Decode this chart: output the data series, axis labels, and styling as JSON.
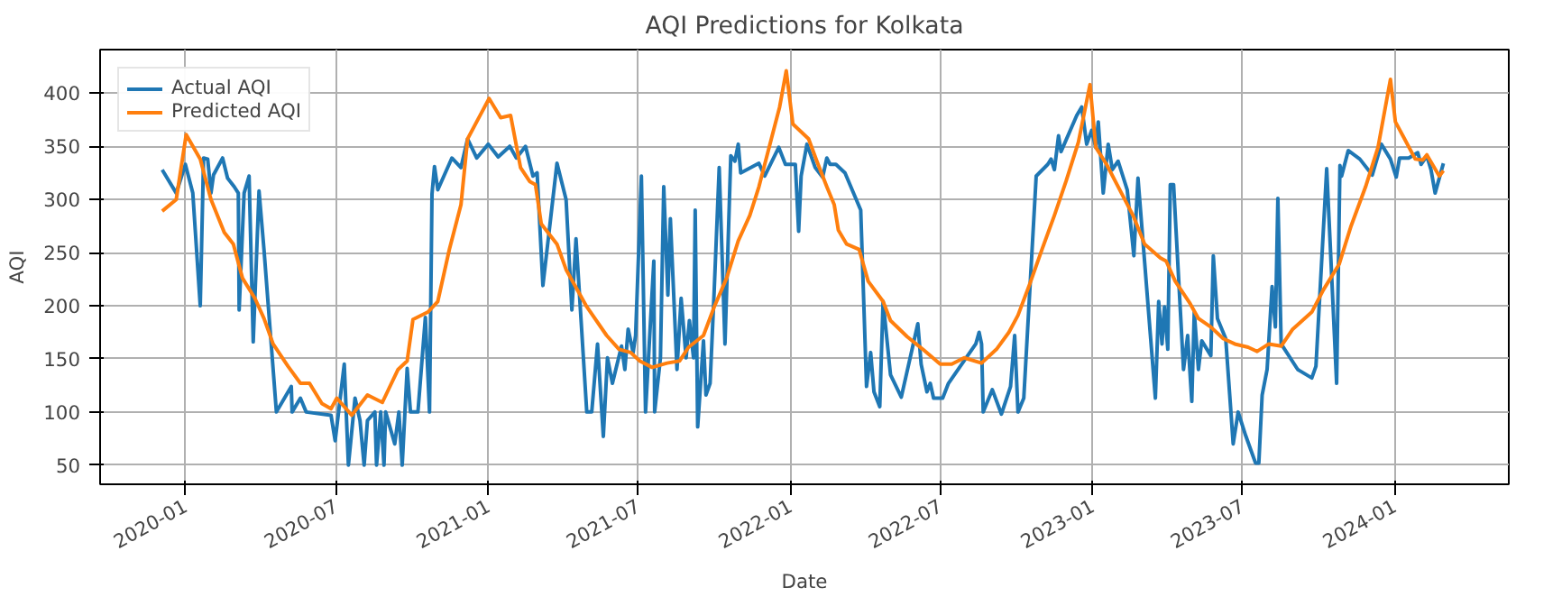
{
  "chart_data": {
    "type": "line",
    "title": "AQI Predictions for Kolkata",
    "xlabel": "Date",
    "ylabel": "AQI",
    "xlim": [
      "2019-09-20",
      "2024-05-18"
    ],
    "ylim": [
      32,
      441
    ],
    "xticks": [
      "2020-01",
      "2020-07",
      "2021-01",
      "2021-07",
      "2022-01",
      "2022-07",
      "2023-01",
      "2023-07",
      "2024-01"
    ],
    "yticks": [
      50,
      100,
      150,
      200,
      250,
      300,
      350,
      400
    ],
    "grid": true,
    "legend": "top left",
    "series": [
      {
        "name": "Actual AQI",
        "color": "#1f77b4",
        "x": [
          "2019-12-04",
          "2019-12-21",
          "2020-01-01",
          "2020-01-10",
          "2020-01-19",
          "2020-01-23",
          "2020-01-28",
          "2020-02-01",
          "2020-02-04",
          "2020-02-15",
          "2020-02-21",
          "2020-02-29",
          "2020-03-05",
          "2020-03-06",
          "2020-03-12",
          "2020-03-18",
          "2020-03-23",
          "2020-03-30",
          "2020-04-05",
          "2020-04-20",
          "2020-05-08",
          "2020-05-09",
          "2020-05-19",
          "2020-05-26",
          "2020-06-25",
          "2020-06-30",
          "2020-07-11",
          "2020-07-16",
          "2020-07-24",
          "2020-07-30",
          "2020-08-04",
          "2020-08-08",
          "2020-08-17",
          "2020-08-19",
          "2020-08-24",
          "2020-08-28",
          "2020-08-30",
          "2020-09-10",
          "2020-09-15",
          "2020-09-19",
          "2020-09-25",
          "2020-09-29",
          "2020-10-08",
          "2020-10-17",
          "2020-10-22",
          "2020-10-25",
          "2020-10-28",
          "2020-11-01",
          "2020-11-18",
          "2020-11-29",
          "2020-12-07",
          "2020-12-18",
          "2021-01-01",
          "2021-01-13",
          "2021-01-27",
          "2021-02-04",
          "2021-02-15",
          "2021-02-24",
          "2021-03-01",
          "2021-03-08",
          "2021-03-25",
          "2021-04-05",
          "2021-04-12",
          "2021-04-17",
          "2021-04-30",
          "2021-05-06",
          "2021-05-13",
          "2021-05-20",
          "2021-05-25",
          "2021-05-31",
          "2021-06-11",
          "2021-06-15",
          "2021-06-19",
          "2021-06-25",
          "2021-06-28",
          "2021-07-05",
          "2021-07-10",
          "2021-07-20",
          "2021-07-21",
          "2021-07-28",
          "2021-08-01",
          "2021-08-06",
          "2021-08-09",
          "2021-08-17",
          "2021-08-22",
          "2021-08-28",
          "2021-09-01",
          "2021-09-06",
          "2021-09-08",
          "2021-09-11",
          "2021-09-18",
          "2021-09-21",
          "2021-09-26",
          "2021-10-01",
          "2021-10-07",
          "2021-10-14",
          "2021-10-21",
          "2021-10-26",
          "2021-10-30",
          "2021-11-02",
          "2021-11-24",
          "2021-12-01",
          "2021-12-18",
          "2021-12-26",
          "2022-01-07",
          "2022-01-11",
          "2022-01-14",
          "2022-01-21",
          "2022-01-31",
          "2022-02-09",
          "2022-02-14",
          "2022-02-18",
          "2022-02-25",
          "2022-03-08",
          "2022-03-27",
          "2022-04-03",
          "2022-04-08",
          "2022-04-12",
          "2022-04-19",
          "2022-04-23",
          "2022-05-02",
          "2022-05-15",
          "2022-06-04",
          "2022-06-08",
          "2022-06-15",
          "2022-06-19",
          "2022-06-23",
          "2022-07-04",
          "2022-07-11",
          "2022-08-13",
          "2022-08-17",
          "2022-08-20",
          "2022-08-22",
          "2022-09-02",
          "2022-09-13",
          "2022-09-24",
          "2022-09-29",
          "2022-10-03",
          "2022-10-10",
          "2022-10-25",
          "2022-11-08",
          "2022-11-12",
          "2022-11-16",
          "2022-11-21",
          "2022-11-24",
          "2022-12-13",
          "2022-12-19",
          "2022-12-25",
          "2022-12-31",
          "2023-01-05",
          "2023-01-08",
          "2023-01-14",
          "2023-01-20",
          "2023-01-25",
          "2023-02-01",
          "2023-02-12",
          "2023-02-20",
          "2023-02-25",
          "2023-03-18",
          "2023-03-22",
          "2023-03-26",
          "2023-03-29",
          "2023-04-02",
          "2023-04-05",
          "2023-04-09",
          "2023-04-21",
          "2023-04-26",
          "2023-05-01",
          "2023-05-04",
          "2023-05-09",
          "2023-05-13",
          "2023-05-24",
          "2023-05-27",
          "2023-06-01",
          "2023-06-11",
          "2023-06-20",
          "2023-06-26",
          "2023-07-05",
          "2023-07-17",
          "2023-07-21",
          "2023-07-25",
          "2023-07-31",
          "2023-08-06",
          "2023-08-10",
          "2023-08-13",
          "2023-08-17",
          "2023-09-06",
          "2023-09-08",
          "2023-09-23",
          "2023-09-28",
          "2023-10-11",
          "2023-10-23",
          "2023-10-27",
          "2023-10-29",
          "2023-11-06",
          "2023-11-20",
          "2023-12-05",
          "2023-12-16",
          "2023-12-27",
          "2024-01-03",
          "2024-01-07",
          "2024-01-18",
          "2024-01-29",
          "2024-02-02",
          "2024-02-09",
          "2024-02-14",
          "2024-02-19",
          "2024-02-29"
        ],
        "values": [
          328,
          306,
          333,
          306,
          200,
          339,
          338,
          306,
          323,
          339,
          320,
          312,
          306,
          196,
          306,
          322,
          166,
          308,
          253,
          100,
          124,
          100,
          113,
          100,
          97,
          73,
          145,
          50,
          113,
          92,
          50,
          92,
          100,
          50,
          100,
          50,
          100,
          70,
          100,
          50,
          141,
          100,
          100,
          189,
          100,
          305,
          331,
          309,
          339,
          330,
          357,
          339,
          352,
          340,
          350,
          339,
          350,
          322,
          325,
          219,
          334,
          300,
          196,
          263,
          100,
          100,
          164,
          77,
          151,
          127,
          162,
          140,
          178,
          156,
          172,
          322,
          100,
          242,
          100,
          151,
          312,
          210,
          282,
          140,
          207,
          151,
          186,
          151,
          290,
          86,
          167,
          116,
          127,
          215,
          330,
          164,
          341,
          336,
          352,
          325,
          334,
          322,
          349,
          333,
          333,
          270,
          322,
          352,
          330,
          321,
          339,
          333,
          333,
          325,
          290,
          124,
          156,
          119,
          105,
          204,
          135,
          114,
          183,
          145,
          119,
          127,
          113,
          113,
          127,
          164,
          175,
          164,
          100,
          121,
          98,
          124,
          172,
          100,
          113,
          322,
          333,
          338,
          328,
          360,
          345,
          379,
          387,
          352,
          365,
          349,
          373,
          306,
          352,
          328,
          336,
          309,
          247,
          320,
          113,
          204,
          164,
          199,
          159,
          314,
          314,
          140,
          172,
          110,
          194,
          140,
          167,
          153,
          247,
          188,
          169,
          70,
          100,
          78,
          52,
          52,
          116,
          140,
          218,
          180,
          301,
          164,
          140,
          139,
          132,
          143,
          329,
          127,
          332,
          322,
          346,
          338,
          323,
          352,
          338,
          321,
          339,
          339,
          344,
          333,
          341,
          328,
          306,
          334
        ]
      },
      {
        "name": "Predicted AQI",
        "color": "#ff7f0e",
        "x": [
          "2019-12-04",
          "2019-12-21",
          "2020-01-02",
          "2020-01-19",
          "2020-02-01",
          "2020-02-17",
          "2020-02-28",
          "2020-03-10",
          "2020-03-25",
          "2020-04-05",
          "2020-04-16",
          "2020-05-04",
          "2020-05-19",
          "2020-05-30",
          "2020-06-14",
          "2020-06-25",
          "2020-07-02",
          "2020-07-20",
          "2020-08-08",
          "2020-08-26",
          "2020-09-14",
          "2020-09-25",
          "2020-10-02",
          "2020-10-20",
          "2020-11-01",
          "2020-11-15",
          "2020-11-29",
          "2020-12-07",
          "2020-12-22",
          "2021-01-02",
          "2021-01-16",
          "2021-01-28",
          "2021-02-09",
          "2021-02-20",
          "2021-02-27",
          "2021-03-06",
          "2021-03-25",
          "2021-04-05",
          "2021-04-30",
          "2021-05-24",
          "2021-06-08",
          "2021-06-22",
          "2021-07-03",
          "2021-07-18",
          "2021-08-05",
          "2021-08-20",
          "2021-08-31",
          "2021-09-18",
          "2021-10-01",
          "2021-10-16",
          "2021-10-30",
          "2021-11-13",
          "2021-11-24",
          "2021-12-09",
          "2021-12-19",
          "2021-12-27",
          "2022-01-04",
          "2022-01-23",
          "2022-02-02",
          "2022-02-14",
          "2022-02-23",
          "2022-02-28",
          "2022-03-10",
          "2022-03-25",
          "2022-04-05",
          "2022-04-23",
          "2022-05-02",
          "2022-05-22",
          "2022-06-10",
          "2022-07-01",
          "2022-07-15",
          "2022-07-30",
          "2022-08-20",
          "2022-09-07",
          "2022-09-22",
          "2022-10-03",
          "2022-10-17",
          "2022-11-01",
          "2022-11-16",
          "2022-11-30",
          "2022-12-15",
          "2022-12-29",
          "2023-01-05",
          "2023-01-18",
          "2023-02-05",
          "2023-02-19",
          "2023-03-05",
          "2023-03-24",
          "2023-03-31",
          "2023-04-11",
          "2023-04-29",
          "2023-05-09",
          "2023-05-24",
          "2023-06-08",
          "2023-06-22",
          "2023-07-08",
          "2023-07-19",
          "2023-08-02",
          "2023-08-17",
          "2023-08-31",
          "2023-09-23",
          "2023-10-07",
          "2023-10-26",
          "2023-11-09",
          "2023-11-27",
          "2023-12-12",
          "2023-12-27",
          "2024-01-02",
          "2024-01-11",
          "2024-01-26",
          "2024-02-04",
          "2024-02-09",
          "2024-02-24",
          "2024-02-29"
        ],
        "values": [
          289,
          300,
          361,
          338,
          300,
          269,
          258,
          226,
          207,
          188,
          164,
          143,
          127,
          127,
          108,
          103,
          113,
          97,
          116,
          109,
          140,
          148,
          187,
          194,
          204,
          253,
          295,
          357,
          379,
          395,
          377,
          379,
          330,
          317,
          314,
          277,
          258,
          234,
          199,
          172,
          159,
          156,
          148,
          142,
          146,
          148,
          161,
          172,
          199,
          226,
          261,
          285,
          312,
          357,
          387,
          421,
          371,
          357,
          336,
          312,
          295,
          271,
          258,
          253,
          223,
          204,
          186,
          171,
          159,
          145,
          145,
          151,
          146,
          159,
          175,
          191,
          220,
          253,
          285,
          317,
          354,
          408,
          349,
          333,
          306,
          285,
          258,
          245,
          242,
          223,
          202,
          188,
          180,
          169,
          164,
          161,
          157,
          164,
          162,
          178,
          194,
          215,
          239,
          274,
          312,
          349,
          413,
          373,
          360,
          338,
          337,
          342,
          322,
          327
        ]
      }
    ]
  }
}
